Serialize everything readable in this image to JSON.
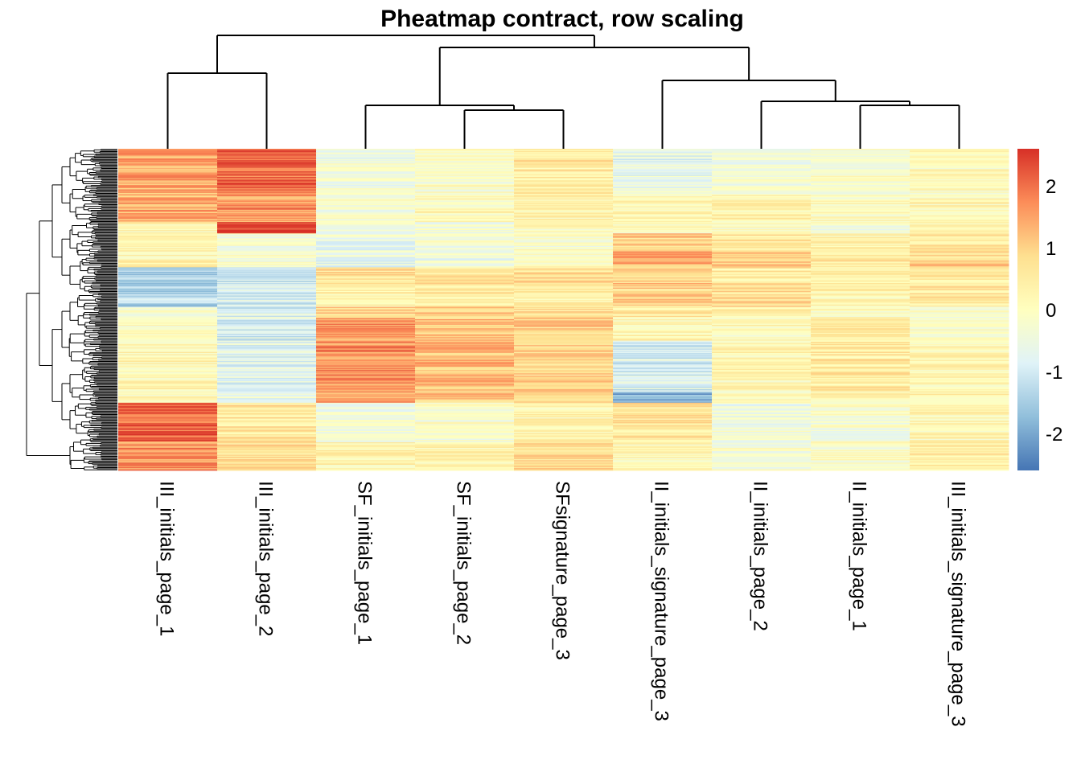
{
  "chart_data": {
    "type": "heatmap",
    "title": "Pheatmap contract, row scaling",
    "columns": [
      "III_initials_page_1",
      "III_initials_page_2",
      "SF_initials_page_1",
      "SF_initials_page_2",
      "SFsignature_page_3",
      "II_initials_signature_page_3",
      "II_initials_page_2",
      "II_initials_page_1",
      "III_initials_signature_page_3"
    ],
    "row_blocks": [
      {
        "rows": 40,
        "values": [
          1.4,
          2.1,
          -0.4,
          -0.2,
          0.5,
          -0.6,
          -0.3,
          -0.2,
          0.0
        ]
      },
      {
        "rows": 25,
        "values": [
          1.4,
          1.6,
          -0.2,
          0.1,
          0.3,
          0.2,
          0.3,
          0.0,
          0.2
        ]
      },
      {
        "rows": 10,
        "values": [
          0.1,
          2.6,
          -0.5,
          -0.4,
          0.1,
          0.0,
          -0.1,
          -0.3,
          0.0
        ]
      },
      {
        "rows": 15,
        "values": [
          0.4,
          -0.2,
          -0.5,
          -0.3,
          -0.1,
          1.0,
          0.6,
          0.3,
          0.6
        ]
      },
      {
        "rows": 15,
        "values": [
          0.3,
          -0.3,
          -0.6,
          -0.5,
          -0.1,
          1.3,
          1.1,
          0.5,
          0.9
        ]
      },
      {
        "rows": 15,
        "values": [
          -1.5,
          -1.1,
          0.8,
          0.6,
          0.8,
          1.0,
          0.5,
          0.3,
          0.5
        ]
      },
      {
        "rows": 20,
        "values": [
          -1.3,
          -0.9,
          0.4,
          0.5,
          0.4,
          0.9,
          0.8,
          0.3,
          0.6
        ]
      },
      {
        "rows": 10,
        "values": [
          -0.2,
          -0.8,
          0.9,
          1.0,
          0.7,
          0.5,
          0.3,
          0.0,
          -0.3
        ]
      },
      {
        "rows": 20,
        "values": [
          0.0,
          -0.9,
          1.6,
          1.1,
          1.0,
          0.2,
          0.1,
          0.4,
          -0.2
        ]
      },
      {
        "rows": 45,
        "values": [
          0.2,
          -0.7,
          1.7,
          1.2,
          0.9,
          -0.9,
          0.2,
          0.5,
          0.2
        ]
      },
      {
        "rows": 10,
        "values": [
          0.2,
          -0.5,
          1.5,
          1.1,
          0.8,
          -1.9,
          0.0,
          0.3,
          0.3
        ]
      },
      {
        "rows": 35,
        "values": [
          2.1,
          0.6,
          -0.3,
          -0.2,
          0.2,
          0.6,
          -0.4,
          -0.3,
          0.1
        ]
      },
      {
        "rows": 25,
        "values": [
          1.6,
          0.7,
          0.3,
          0.2,
          0.8,
          0.1,
          -0.3,
          -0.2,
          0.5
        ]
      }
    ],
    "total_rows": 285,
    "color_scale": {
      "range": [
        -2.6,
        2.6
      ],
      "stops": [
        "#4575B4",
        "#91BFDB",
        "#E0F3F8",
        "#FFFFBF",
        "#FEE090",
        "#FC8D59",
        "#D73027"
      ]
    },
    "legend": {
      "ticks": [
        2,
        1,
        0,
        -1,
        -2
      ],
      "tick_labels": [
        "2",
        "1",
        "0",
        "-1",
        "-2"
      ],
      "placement": "right"
    },
    "row_dendrogram": true,
    "column_dendrogram": true
  }
}
